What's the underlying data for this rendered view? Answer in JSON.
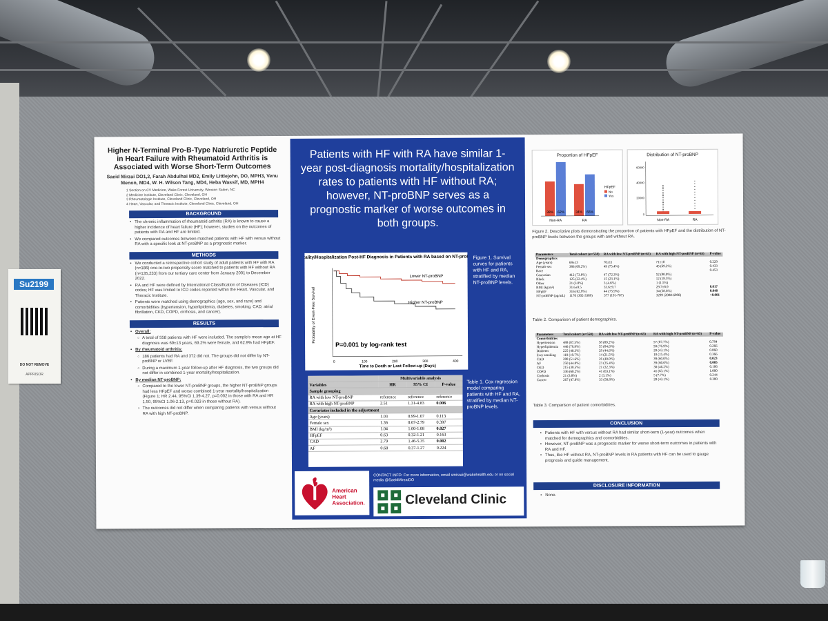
{
  "poster": {
    "title": "Higher N-Terminal Pro-B-Type Natriuretic Peptide in Heart Failure with Rheumatoid Arthritis is Associated with Worse Short-Term Outcomes",
    "authors": "Saeid Mirzai DO1,2, Farah Abdulhai MD2, Emily Littlejohn, DO, MPH3, Venu Menon, MD4, W. H. Wilson Tang, MD4, Heba Wassif, MD, MPH4",
    "affiliations": [
      "1 Section on CV Medicine, Wake Forest University, Winston Salem, NC",
      "2 Medicine Institute, Cleveland Clinic, Cleveland, OH",
      "3 Rheumatologic Institute, Cleveland Clinic, Cleveland, OH",
      "4 Heart, Vascular, and Thoracic Institute, Cleveland Clinic, Cleveland, OH"
    ],
    "background_header": "BACKGROUND",
    "background": [
      "The chronic inflammation of rheumatoid arthritis (RA) is known to cause a higher incidence of heart failure (HF); however, studies on the outcomes of patients with RA and HF are limited.",
      "We compared outcomes between matched patients with HF with versus without RA with a specific look at NT-proBNP as a prognostic marker."
    ],
    "methods_header": "METHODS",
    "methods": [
      "We conducted a retrospective cohort study of adult patients with HF with RA (n=186) one-to-two propensity score matched to patients with HF without RA (n=135,233) from our tertiary care center from January 2001 to December 2022.",
      "RA and HF were defined by International Classification of Diseases (ICD) codes; HF was limited to ICD codes reported within the Heart, Vascular, and Thoracic Institute.",
      "Patients were matched using demographics (age, sex, and race) and comorbidities (hypertension, hyperlipidemia, diabetes, smoking, CAD, atrial fibrillation, CKD, COPD, cirrhosis, and cancer)."
    ],
    "results_header": "RESULTS",
    "results": {
      "overall": "Overall:",
      "overall_text": "A total of 558 patients with HF were included. The sample's mean age at HF diagnosis was 69±13 years, 69.2% were female, and 62.9% had HFpEF.",
      "ra": "By rheumatoid arthritis:",
      "ra_1": "186 patients had RA and 372 did not. The groups did not differ by NT-proBNP or LVEF.",
      "ra_2": "During a maximum 1-year follow-up after HF diagnosis, the two groups did not differ in combined 1-year mortality/hospitalization.",
      "bnp": "By median NT-proBNP:",
      "bnp_1": "Compared to the lower NT-proBNP groups, the higher NT-proBNP groups had less HFpEF and worse combined 1-year mortality/hospitalization (Figure 1; HR 2.44, 95%CI 1.39-4.27, p=0.002 in those with RA and HR 1.50, 95%CI 1.06-2.13, p=0.023 in those without RA).",
      "bnp_2": "The outcomes did not differ when comparing patients with versus without RA with high NT-proBNP."
    },
    "headline": "Patients with HF with RA have similar 1-year post-diagnosis mortality/hospitalization rates to patients with HF without RA; however, NT-proBNP serves as a prognostic marker of worse outcomes in both groups.",
    "km": {
      "title": "1-year Mortality/Hospitalization Post-HF Diagnosis in Patients with RA based on NT-proBNP Levels",
      "ylabel": "Probability of Event-Free Survival",
      "xlabel": "Time to Death or Last Follow-up (Days)",
      "lower": "Lower NT-proBNP",
      "higher": "Higher NT-proBNP",
      "pval": "P=0.001 by log-rank test",
      "xticks": [
        "0",
        "100",
        "200",
        "300",
        "400"
      ]
    },
    "fig1_caption": "Figure 1. Survival curves for patients with HF and RA, stratified by median NT-proBNP levels.",
    "table1": {
      "header": [
        "Variables",
        "HR",
        "95% CI",
        "P-value"
      ],
      "span": "Multivariable analysis",
      "grp1": "Sample grouping",
      "rows1": [
        [
          "RA with low NT-proBNP",
          "reference",
          "reference",
          "reference"
        ],
        [
          "RA with high NT-proBNP",
          "2.51",
          "1.31-4.83",
          "0.006"
        ]
      ],
      "grp2": "Covariates included in the adjustment",
      "rows2": [
        [
          "Age (years)",
          "1.03",
          "0.99-1.07",
          "0.113"
        ],
        [
          "Female sex",
          "1.36",
          "0.67-2.79",
          "0.397"
        ],
        [
          "BMI (kg/m²)",
          "1.04",
          "1.00-1.08",
          "0.027"
        ],
        [
          "HFpEF",
          "0.63",
          "0.32-1.21",
          "0.163"
        ],
        [
          "CAD",
          "2.79",
          "1.46-5.35",
          "0.002"
        ],
        [
          "AF",
          "0.68",
          "0.37-1.27",
          "0.224"
        ]
      ]
    },
    "table1_caption": "Table 1. Cox regression model comparing patients with HF and RA, stratified by median NT-proBNP levels.",
    "contact": "CONTACT INFO: For more information, email smirzai@wakehealth.edu or on social media @SaeidMirzaiDO",
    "aha_name": "American Heart Association.",
    "cc_name": "Cleveland Clinic",
    "plot1": {
      "title": "Proportion of HFpEF",
      "legend_title": "HFpEF",
      "legend": [
        "No",
        "Yes"
      ],
      "categories": [
        "Non-RA",
        "RA"
      ],
      "labels": [
        "38%",
        "62%",
        "34%",
        "66%"
      ]
    },
    "plot2": {
      "title": "Distribution of NT-proBNP",
      "categories": [
        "Non-RA",
        "RA"
      ],
      "yticks": [
        "60000",
        "40000",
        "20000",
        "0"
      ]
    },
    "fig2_caption": "Figure 2. Descriptive plots demonstrating the proportion of patients with HFpEF and the distribution of NT-proBNP levels between the groups with and without RA.",
    "table2": {
      "header": [
        "Parameters",
        "Total cohort (n=558)",
        "RA with low NT-proBNP (n=65)",
        "RA with high NT-proBNP (n=65)",
        "P-value"
      ],
      "rows": [
        [
          "Demographics",
          "",
          "",
          "",
          ""
        ],
        [
          "Age (years)",
          "69±13",
          "70±11",
          "71±10",
          "0.229"
        ],
        [
          "Female sex",
          "386 (69.2%)",
          "49 (75.4%)",
          "45 (69.2%)",
          "0.433"
        ],
        [
          "Race",
          "",
          "",
          "",
          "0.453"
        ],
        [
          "  Caucasian",
          "412 (73.8%)",
          "47 (72.3%)",
          "52 (80.0%)",
          ""
        ],
        [
          "  Black",
          "125 (22.4%)",
          "15 (23.1%)",
          "12 (18.5%)",
          ""
        ],
        [
          "  Other",
          "21 (3.8%)",
          "3 (4.6%)",
          "1 (1.5%)",
          ""
        ],
        [
          "BMI (kg/m²)",
          "31.6±9.5",
          "33.6±9.7",
          "29.7±8.9",
          "0.017"
        ],
        [
          "HFpEF",
          "316 (62.9%)",
          "44 (75.9%)",
          "34 (58.6%)",
          "0.048"
        ],
        [
          "NT-proBNP (pg/mL)",
          "1170 (302-3389)",
          "377 (191-707)",
          "3299 (2088-6990)",
          "<0.001"
        ]
      ]
    },
    "table2_caption": "Table 2. Comparison of patient demographics.",
    "table3": {
      "rows": [
        [
          "Comorbidities",
          "",
          "",
          "",
          ""
        ],
        [
          "Hypertension",
          "488 (87.5%)",
          "58 (89.2%)",
          "57 (87.7%)",
          "0.784"
        ],
        [
          "Hyperlipidemia",
          "446 (79.9%)",
          "55 (84.6%)",
          "50 (76.9%)",
          "0.266"
        ],
        [
          "Diabetes",
          "225 (40.3%)",
          "29 (44.6%)",
          "28 (43.1%)",
          "0.860"
        ],
        [
          "Ever smoking",
          "110 (19.7%)",
          "14 (21.5%)",
          "10 (15.4%)",
          "0.366"
        ],
        [
          "CAD",
          "288 (51.6%)",
          "26 (40.0%)",
          "39 (60.0%)",
          "0.023"
        ],
        [
          "AF",
          "250 (44.8%)",
          "23 (35.4%)",
          "39 (60.0%)",
          "0.005"
        ],
        [
          "CKD",
          "215 (38.5%)",
          "21 (32.3%)",
          "30 (46.2%)",
          "0.106"
        ],
        [
          "COPD",
          "336 (60.2%)",
          "41 (63.1%)",
          "41 (63.1%)",
          "1.000"
        ],
        [
          "Cirrhosis",
          "21 (3.8%)",
          "2 (3.1%)",
          "5 (7.7%)",
          "0.244"
        ],
        [
          "Cancer",
          "267 (47.8%)",
          "33 (50.8%)",
          "28 (43.1%)",
          "0.380"
        ]
      ]
    },
    "table3_caption": "Table 3. Comparison of patient comorbidities.",
    "conclusion_header": "CONCLUSION",
    "conclusion": [
      "Patients with HF with versus without RA had similar short-term (1-year) outcomes when matched for demographics and comorbidities.",
      "However, NT-proBNP was a prognostic marker for worse short-term outcomes in patients with RA and HF.",
      "Thus, like HF without RA, NT-proBNP levels in RA patients with HF can be used to gauge prognosis and guide management."
    ],
    "disclosure_header": "DISCLOSURE INFORMATION",
    "disclosure": "None."
  },
  "placard": {
    "number": "Su2199",
    "do_not_remove": "DO NOT REMOVE",
    "sponsor": "APPRISOR"
  },
  "colors": {
    "poster_blue": "#1f3f9c",
    "header_blue": "#1f3f8c",
    "bar_red": "#e0513f",
    "bar_blue": "#5b7fd6",
    "curve_red": "#c0392b"
  }
}
